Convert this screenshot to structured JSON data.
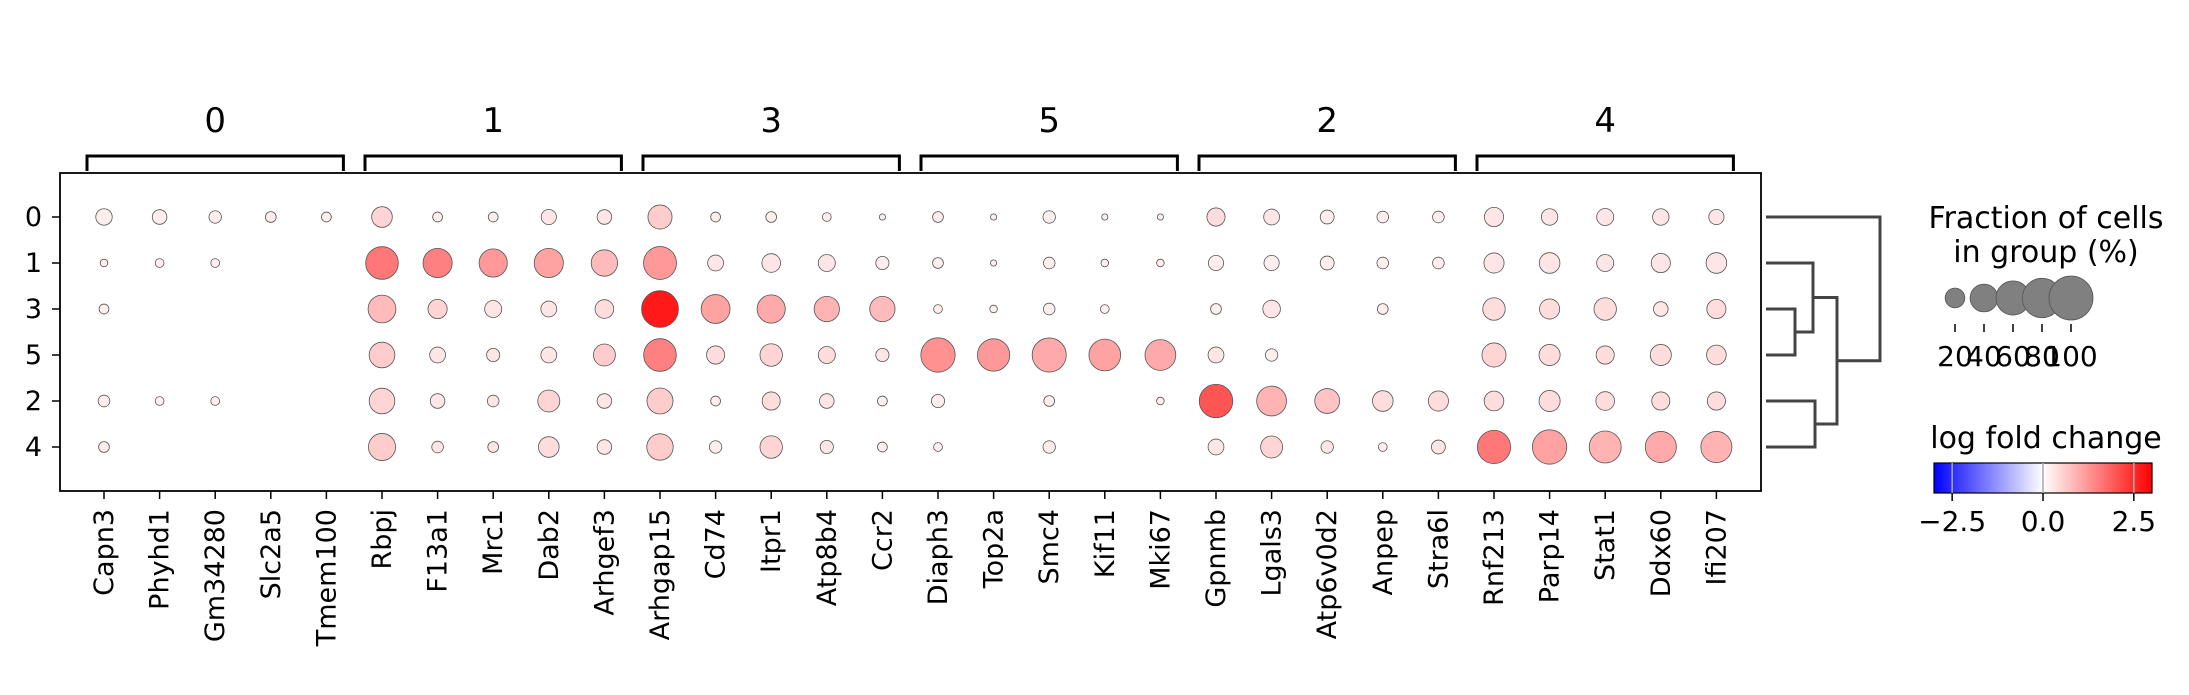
{
  "chart_data": {
    "type": "dotplot",
    "title": "",
    "row_categories": [
      "0",
      "1",
      "3",
      "5",
      "2",
      "4"
    ],
    "col_groups": [
      {
        "label": "0",
        "genes": [
          "Capn3",
          "Phyhd1",
          "Gm34280",
          "Slc2a5",
          "Tmem100"
        ]
      },
      {
        "label": "1",
        "genes": [
          "Rbpj",
          "F13a1",
          "Mrc1",
          "Dab2",
          "Arhgef3"
        ]
      },
      {
        "label": "3",
        "genes": [
          "Arhgap15",
          "Cd74",
          "Itpr1",
          "Atp8b4",
          "Ccr2"
        ]
      },
      {
        "label": "5",
        "genes": [
          "Diaph3",
          "Top2a",
          "Smc4",
          "Kif11",
          "Mki67"
        ]
      },
      {
        "label": "2",
        "genes": [
          "Gpnmb",
          "Lgals3",
          "Atp6v0d2",
          "Anpep",
          "Stra6l"
        ]
      },
      {
        "label": "4",
        "genes": [
          "Rnf213",
          "Parp14",
          "Stat1",
          "Ddx60",
          "Ifi207"
        ]
      }
    ],
    "genes": [
      "Capn3",
      "Phyhd1",
      "Gm34280",
      "Slc2a5",
      "Tmem100",
      "Rbpj",
      "F13a1",
      "Mrc1",
      "Dab2",
      "Arhgef3",
      "Arhgap15",
      "Cd74",
      "Itpr1",
      "Atp8b4",
      "Ccr2",
      "Diaph3",
      "Top2a",
      "Smc4",
      "Kif11",
      "Mki67",
      "Gpnmb",
      "Lgals3",
      "Atp6v0d2",
      "Anpep",
      "Stra6l",
      "Rnf213",
      "Parp14",
      "Stat1",
      "Ddx60",
      "Ifi207"
    ],
    "fraction_pct": [
      [
        14,
        11,
        8,
        6,
        5,
        22,
        5,
        5,
        12,
        11,
        30,
        5,
        6,
        4,
        2,
        6,
        2,
        8,
        2,
        2,
        17,
        13,
        10,
        7,
        7,
        19,
        14,
        15,
        14,
        12
      ],
      [
        3,
        4,
        4,
        0,
        0,
        55,
        44,
        41,
        44,
        36,
        56,
        13,
        18,
        15,
        9,
        6,
        2,
        7,
        3,
        3,
        12,
        12,
        10,
        7,
        7,
        21,
        22,
        15,
        19,
        22
      ],
      [
        5,
        0,
        0,
        0,
        0,
        40,
        19,
        15,
        13,
        18,
        70,
        43,
        41,
        33,
        33,
        4,
        3,
        7,
        4,
        0,
        6,
        16,
        0,
        6,
        0,
        26,
        21,
        26,
        11,
        19
      ],
      [
        0,
        0,
        0,
        0,
        0,
        34,
        13,
        9,
        13,
        25,
        55,
        17,
        26,
        15,
        9,
        61,
        54,
        60,
        52,
        49,
        13,
        8,
        0,
        0,
        0,
        30,
        23,
        17,
        23,
        20
      ],
      [
        7,
        4,
        4,
        0,
        0,
        34,
        11,
        7,
        25,
        11,
        35,
        5,
        17,
        11,
        5,
        9,
        0,
        6,
        0,
        3,
        58,
        46,
        32,
        22,
        21,
        20,
        23,
        18,
        17,
        17
      ],
      [
        6,
        0,
        0,
        0,
        0,
        38,
        7,
        6,
        22,
        11,
        36,
        8,
        26,
        9,
        5,
        4,
        0,
        8,
        0,
        0,
        13,
        25,
        8,
        4,
        10,
        57,
        61,
        53,
        50,
        50
      ]
    ],
    "log_fold_change": [
      [
        0.2,
        0.2,
        0.2,
        0.2,
        0.2,
        0.5,
        0.2,
        0.2,
        0.3,
        0.3,
        0.6,
        0.2,
        0.2,
        0.2,
        0.2,
        0.2,
        0.2,
        0.2,
        0.2,
        0.2,
        0.4,
        0.3,
        0.2,
        0.2,
        0.2,
        0.3,
        0.3,
        0.3,
        0.3,
        0.3
      ],
      [
        0.2,
        0.2,
        0.2,
        0.2,
        0.2,
        1.6,
        1.5,
        1.2,
        1.1,
        0.8,
        1.2,
        0.3,
        0.3,
        0.3,
        0.2,
        0.2,
        0.2,
        0.2,
        0.2,
        0.2,
        0.2,
        0.2,
        0.2,
        0.2,
        0.2,
        0.3,
        0.3,
        0.3,
        0.3,
        0.3
      ],
      [
        0.2,
        0.2,
        0.2,
        0.2,
        0.2,
        0.8,
        0.5,
        0.3,
        0.3,
        0.4,
        2.7,
        1.1,
        1.0,
        0.9,
        0.8,
        0.2,
        0.2,
        0.2,
        0.2,
        0.2,
        0.2,
        0.3,
        0.2,
        0.2,
        0.2,
        0.4,
        0.4,
        0.4,
        0.3,
        0.4
      ],
      [
        0.2,
        0.2,
        0.2,
        0.2,
        0.2,
        0.6,
        0.3,
        0.3,
        0.3,
        0.6,
        1.5,
        0.4,
        0.5,
        0.4,
        0.3,
        1.3,
        1.2,
        1.0,
        1.1,
        1.0,
        0.3,
        0.2,
        0.2,
        0.2,
        0.2,
        0.5,
        0.4,
        0.4,
        0.4,
        0.4
      ],
      [
        0.2,
        0.2,
        0.2,
        0.2,
        0.2,
        0.5,
        0.3,
        0.3,
        0.5,
        0.3,
        0.6,
        0.2,
        0.4,
        0.3,
        0.2,
        0.2,
        0.2,
        0.2,
        0.2,
        0.2,
        2.0,
        0.9,
        0.7,
        0.4,
        0.4,
        0.4,
        0.4,
        0.4,
        0.4,
        0.4
      ],
      [
        0.2,
        0.2,
        0.2,
        0.2,
        0.2,
        0.6,
        0.3,
        0.3,
        0.4,
        0.3,
        0.6,
        0.2,
        0.5,
        0.3,
        0.2,
        0.2,
        0.2,
        0.2,
        0.2,
        0.2,
        0.3,
        0.5,
        0.3,
        0.2,
        0.3,
        1.6,
        1.1,
        0.9,
        1.0,
        0.9
      ]
    ],
    "size_legend": {
      "title_line1": "Fraction of cells",
      "title_line2": "in group (%)",
      "values": [
        20,
        40,
        60,
        80,
        100
      ],
      "labels": [
        "20",
        "40",
        "60",
        "80",
        "100"
      ]
    },
    "color_legend": {
      "title": "log fold change",
      "vmin": -3,
      "vmax": 3,
      "tick_values": [
        -2.5,
        0.0,
        2.5
      ],
      "tick_labels": [
        "−2.5",
        "0.0",
        "2.5"
      ],
      "cmap": "bwr"
    },
    "dendrogram": {
      "merges": [
        {
          "a": "3",
          "b": "5"
        },
        {
          "a": "1",
          "b": "3+5"
        },
        {
          "a": "2",
          "b": "4"
        },
        {
          "a": "1+3+5",
          "b": "2+4"
        },
        {
          "a": "0",
          "b": "1+3+5+2+4"
        }
      ]
    },
    "dot_color": "#808080",
    "colors": {
      "low": "#0000ff",
      "mid": "#ffffff",
      "high": "#ff0000",
      "edge": "#555555",
      "dendro": "#444444"
    }
  }
}
